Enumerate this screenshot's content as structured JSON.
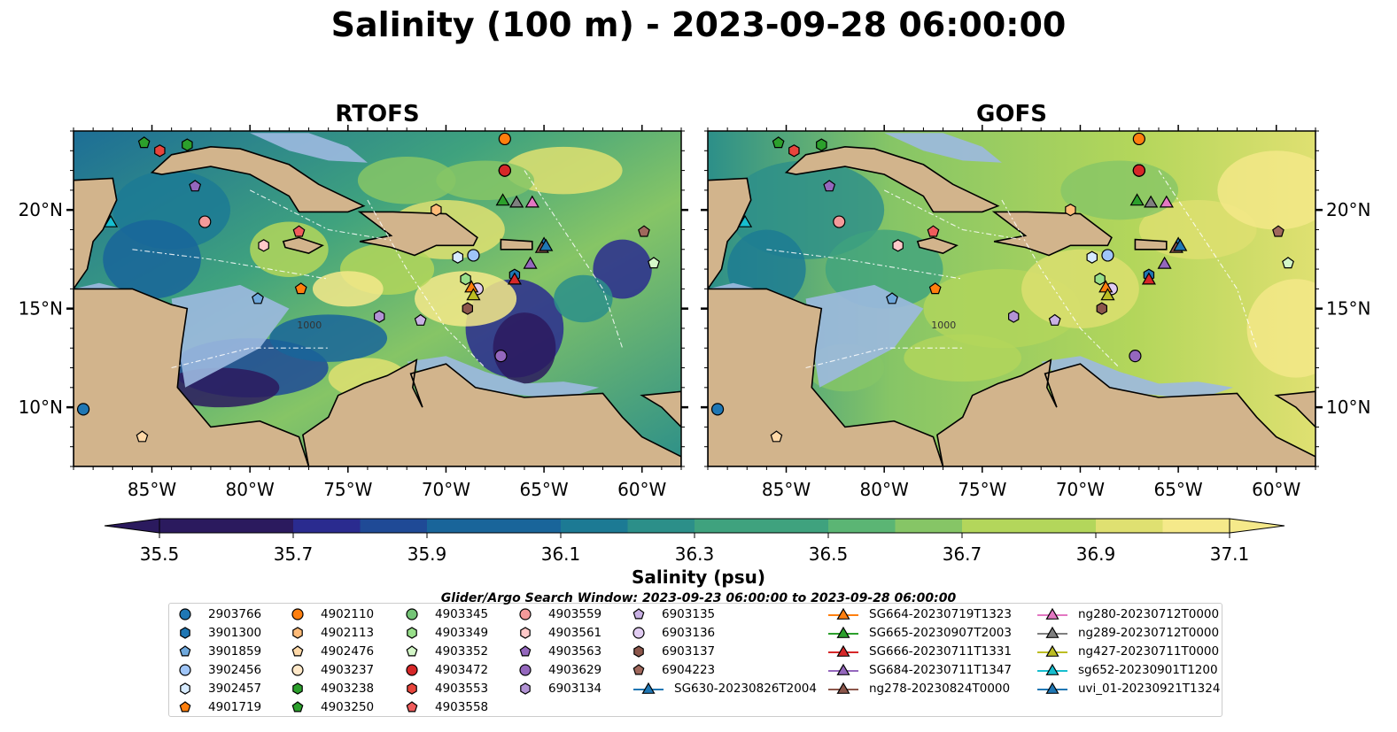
{
  "title": "Salinity (100 m) - 2023-09-28 06:00:00",
  "panels": [
    {
      "title": "RTOFS",
      "model": "RTOFS"
    },
    {
      "title": "GOFS",
      "model": "GOFS"
    }
  ],
  "colors": {
    "land": "#d2b48c",
    "shelf": "#9cb9e0",
    "colormap": [
      "#2b1a5e",
      "#2a2b8f",
      "#1f4a96",
      "#19659a",
      "#1c7a94",
      "#2c8f89",
      "#3fa27e",
      "#5bb574",
      "#86c566",
      "#b3d65b",
      "#dfe071",
      "#f5e98a"
    ]
  },
  "chart_data": [
    {
      "type": "heatmap",
      "title": "RTOFS",
      "x_ticks": [
        "85°W",
        "80°W",
        "75°W",
        "70°W",
        "65°W",
        "60°W"
      ],
      "x_tick_values": [
        -85,
        -80,
        -75,
        -70,
        -65,
        -60
      ],
      "y_ticks": [
        "10°N",
        "15°N",
        "20°N"
      ],
      "y_tick_values": [
        10,
        15,
        20
      ],
      "xlim": [
        -89,
        -58
      ],
      "ylim": [
        7,
        24
      ],
      "contour_label": "1000"
    },
    {
      "type": "heatmap",
      "title": "GOFS",
      "x_ticks": [
        "85°W",
        "80°W",
        "75°W",
        "70°W",
        "65°W",
        "60°W"
      ],
      "x_tick_values": [
        -85,
        -80,
        -75,
        -70,
        -65,
        -60
      ],
      "y_ticks": [
        "10°N",
        "15°N",
        "20°N"
      ],
      "y_tick_values": [
        10,
        15,
        20
      ],
      "xlim": [
        -89,
        -58
      ],
      "ylim": [
        7,
        24
      ],
      "contour_label": "1000"
    }
  ],
  "colorbar": {
    "label": "Salinity (psu)",
    "min": 35.5,
    "max": 37.1,
    "ticks": [
      "35.5",
      "35.7",
      "35.9",
      "36.1",
      "36.3",
      "36.5",
      "36.7",
      "36.9",
      "37.1"
    ],
    "extend": "both"
  },
  "search_window": "Glider/Argo Search Window: 2023-09-23 06:00:00 to 2023-09-28 06:00:00",
  "platforms": [
    {
      "name": "2903766",
      "marker": "circle",
      "color": "#1f77b4",
      "lon": -88.5,
      "lat": 9.9
    },
    {
      "name": "3901300",
      "marker": "hexagon",
      "color": "#1f77b4",
      "lon": -66.5,
      "lat": 16.7
    },
    {
      "name": "3901859",
      "marker": "pentagon",
      "color": "#6fa8dc",
      "lon": -79.6,
      "lat": 15.5
    },
    {
      "name": "3902456",
      "marker": "circle",
      "color": "#9fc5f8",
      "lon": -68.6,
      "lat": 17.7
    },
    {
      "name": "3902457",
      "marker": "hexagon",
      "color": "#d7ebff",
      "lon": -69.4,
      "lat": 17.6
    },
    {
      "name": "4901719",
      "marker": "pentagon",
      "color": "#ff7f0e",
      "lon": -77.4,
      "lat": 16.0
    },
    {
      "name": "4902110",
      "marker": "circle",
      "color": "#ff7f0e",
      "lon": -67.0,
      "lat": 23.6
    },
    {
      "name": "4902113",
      "marker": "hexagon",
      "color": "#ffbb78",
      "lon": -70.5,
      "lat": 20.0
    },
    {
      "name": "4902476",
      "marker": "pentagon",
      "color": "#ffd9a8",
      "lon": -85.5,
      "lat": 8.5
    },
    {
      "name": "4903237",
      "marker": "circle",
      "color": "#ffe8c8",
      "lon": -67.0,
      "lat": 22.0
    },
    {
      "name": "4903238",
      "marker": "hexagon",
      "color": "#2ca02c",
      "lon": -83.2,
      "lat": 23.3
    },
    {
      "name": "4903250",
      "marker": "pentagon",
      "color": "#2ca02c",
      "lon": -85.4,
      "lat": 23.4
    },
    {
      "name": "4903345",
      "marker": "circle",
      "color": "#74c476",
      "lon": -67.0,
      "lat": 22.0
    },
    {
      "name": "4903349",
      "marker": "hexagon",
      "color": "#98df8a",
      "lon": -69.0,
      "lat": 16.5
    },
    {
      "name": "4903352",
      "marker": "pentagon",
      "color": "#d4f7c8",
      "lon": -59.4,
      "lat": 17.3
    },
    {
      "name": "4903472",
      "marker": "circle",
      "color": "#d62728",
      "lon": -67.0,
      "lat": 22.0
    },
    {
      "name": "4903553",
      "marker": "hexagon",
      "color": "#e8453c",
      "lon": -84.6,
      "lat": 23.0
    },
    {
      "name": "4903558",
      "marker": "pentagon",
      "color": "#f05c5c",
      "lon": -77.5,
      "lat": 18.9
    },
    {
      "name": "4903559",
      "marker": "circle",
      "color": "#f49a9a",
      "lon": -82.3,
      "lat": 19.4
    },
    {
      "name": "4903561",
      "marker": "hexagon",
      "color": "#ffc9c9",
      "lon": -79.3,
      "lat": 18.2
    },
    {
      "name": "4903563",
      "marker": "pentagon",
      "color": "#9467bd",
      "lon": -82.8,
      "lat": 21.2
    },
    {
      "name": "4903629",
      "marker": "circle",
      "color": "#9467bd",
      "lon": -67.2,
      "lat": 12.6
    },
    {
      "name": "6903134",
      "marker": "hexagon",
      "color": "#b293d4",
      "lon": -73.4,
      "lat": 14.6
    },
    {
      "name": "6903135",
      "marker": "pentagon",
      "color": "#c9b1e4",
      "lon": -71.3,
      "lat": 14.4
    },
    {
      "name": "6903136",
      "marker": "circle",
      "color": "#e1ccf2",
      "lon": -68.4,
      "lat": 16.0
    },
    {
      "name": "6903137",
      "marker": "hexagon",
      "color": "#8c564b",
      "lon": -68.9,
      "lat": 15.0
    },
    {
      "name": "6904223",
      "marker": "pentagon",
      "color": "#a0685c",
      "lon": -59.9,
      "lat": 18.9
    },
    {
      "name": "SG630-20230826T2004",
      "marker": "triangle",
      "color": "#1f77b4",
      "lon": -65.0,
      "lat": 18.3,
      "line": true
    },
    {
      "name": "SG664-20230719T1323",
      "marker": "triangle",
      "color": "#ff7f0e",
      "lon": -68.7,
      "lat": 16.1,
      "line": true
    },
    {
      "name": "SG665-20230907T2003",
      "marker": "triangle",
      "color": "#2ca02c",
      "lon": -67.1,
      "lat": 20.5,
      "line": true
    },
    {
      "name": "SG666-20230711T1331",
      "marker": "triangle",
      "color": "#d62728",
      "lon": -66.5,
      "lat": 16.5,
      "line": true
    },
    {
      "name": "SG684-20230711T1347",
      "marker": "triangle",
      "color": "#9467bd",
      "lon": -65.7,
      "lat": 17.3,
      "line": true
    },
    {
      "name": "ng278-20230824T0000",
      "marker": "triangle",
      "color": "#8c564b",
      "lon": -65.1,
      "lat": 18.1,
      "line": true
    },
    {
      "name": "ng280-20230712T0000",
      "marker": "triangle",
      "color": "#e377c2",
      "lon": -65.6,
      "lat": 20.4,
      "line": true
    },
    {
      "name": "ng289-20230712T0000",
      "marker": "triangle",
      "color": "#7f7f7f",
      "lon": -66.4,
      "lat": 20.4,
      "line": true
    },
    {
      "name": "ng427-20230711T0000",
      "marker": "triangle",
      "color": "#bcbd22",
      "lon": -68.6,
      "lat": 15.7,
      "line": true
    },
    {
      "name": "sg652-20230901T1200",
      "marker": "triangle",
      "color": "#17becf",
      "lon": -87.1,
      "lat": 19.4,
      "line": true
    },
    {
      "name": "uvi_01-20230921T1324",
      "marker": "triangle",
      "color": "#1f77b4",
      "lon": -64.9,
      "lat": 18.2,
      "line": true
    }
  ]
}
